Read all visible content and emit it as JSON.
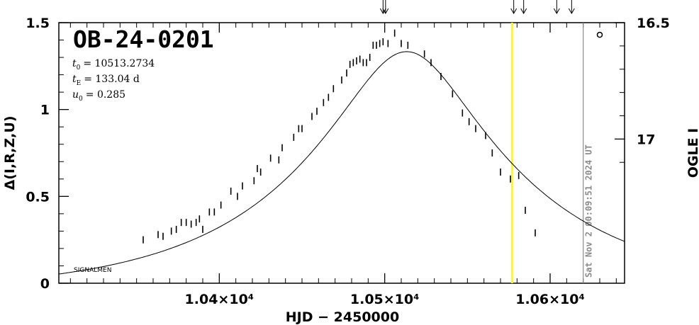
{
  "chart_data": {
    "type": "scatter",
    "title": "OB-24-0201",
    "xlabel": "HJD − 2450000",
    "ylabel": "Δ(I,R,Z,U)",
    "ylabel_right": "OGLE I",
    "xlim": [
      10303,
      10645
    ],
    "ylim": [
      0,
      1.5
    ],
    "x_ticks": [
      10400,
      10500,
      10600
    ],
    "x_tick_labels": [
      "1.04×10⁴",
      "1.05×10⁴",
      "1.06×10⁴"
    ],
    "y_ticks": [
      0,
      0.5,
      1,
      1.5
    ],
    "y_tick_labels": [
      "0",
      "0.5",
      "1",
      "1.5"
    ],
    "y2_ticks": [
      16.5,
      17
    ],
    "y2_tick_labels": [
      "16.5",
      "17"
    ],
    "parameters": {
      "t0_label": "t",
      "t0_sub": "0",
      "t0_value": "= 10513.2734",
      "tE_label": "t",
      "tE_sub": "E",
      "tE_value": "= 133.04 d",
      "u0_label": "u",
      "u0_sub": "0",
      "u0_value": "= 0.285"
    },
    "model": {
      "t0": 10513.2734,
      "tE": 133.04,
      "u0": 0.285,
      "baseline_offset": -0.062
    },
    "signalmen_label": "SIGNALMEN",
    "current_time_x": 10577,
    "current_time_color": "#ffff00",
    "stamp_x": 10620,
    "stamp_text": "Sat Nov  2 00:09:51 2024 UT",
    "stamp_color": "#8a8a8a",
    "top_arrows_x": [
      10499,
      10500.5,
      10578,
      10584,
      10604,
      10613
    ],
    "outlier_marker": {
      "x": 10630,
      "y": 1.43
    },
    "points": [
      [
        10354,
        0.25
      ],
      [
        10363,
        0.28
      ],
      [
        10366,
        0.27
      ],
      [
        10371,
        0.3
      ],
      [
        10374,
        0.31
      ],
      [
        10377,
        0.35
      ],
      [
        10380,
        0.35
      ],
      [
        10383,
        0.34
      ],
      [
        10386,
        0.35
      ],
      [
        10388,
        0.37
      ],
      [
        10390,
        0.31
      ],
      [
        10394,
        0.41
      ],
      [
        10397,
        0.41
      ],
      [
        10401,
        0.45
      ],
      [
        10407,
        0.53
      ],
      [
        10411,
        0.5
      ],
      [
        10414,
        0.56
      ],
      [
        10421,
        0.59
      ],
      [
        10423,
        0.66
      ],
      [
        10425,
        0.64
      ],
      [
        10431,
        0.72
      ],
      [
        10436,
        0.71
      ],
      [
        10438,
        0.78
      ],
      [
        10445,
        0.84
      ],
      [
        10448,
        0.89
      ],
      [
        10450,
        0.89
      ],
      [
        10456,
        0.96
      ],
      [
        10459,
        0.99
      ],
      [
        10463,
        1.04
      ],
      [
        10466,
        1.07
      ],
      [
        10469,
        1.12
      ],
      [
        10474,
        1.17
      ],
      [
        10477,
        1.21
      ],
      [
        10479,
        1.26
      ],
      [
        10481,
        1.27
      ],
      [
        10483,
        1.28
      ],
      [
        10485,
        1.29
      ],
      [
        10487,
        1.27
      ],
      [
        10489,
        1.27
      ],
      [
        10491,
        1.3
      ],
      [
        10493,
        1.37
      ],
      [
        10495,
        1.37
      ],
      [
        10497,
        1.38
      ],
      [
        10499,
        1.39
      ],
      [
        10502,
        1.38
      ],
      [
        10506,
        1.44
      ],
      [
        10510,
        1.38
      ],
      [
        10514,
        1.37
      ],
      [
        10524,
        1.32
      ],
      [
        10528,
        1.27
      ],
      [
        10534,
        1.19
      ],
      [
        10541,
        1.09
      ],
      [
        10547,
        0.98
      ],
      [
        10551,
        0.93
      ],
      [
        10555,
        0.89
      ],
      [
        10561,
        0.85
      ],
      [
        10565,
        0.75
      ],
      [
        10570,
        0.64
      ],
      [
        10576,
        0.6
      ],
      [
        10581,
        0.62
      ],
      [
        10585,
        0.42
      ],
      [
        10591,
        0.29
      ]
    ]
  }
}
